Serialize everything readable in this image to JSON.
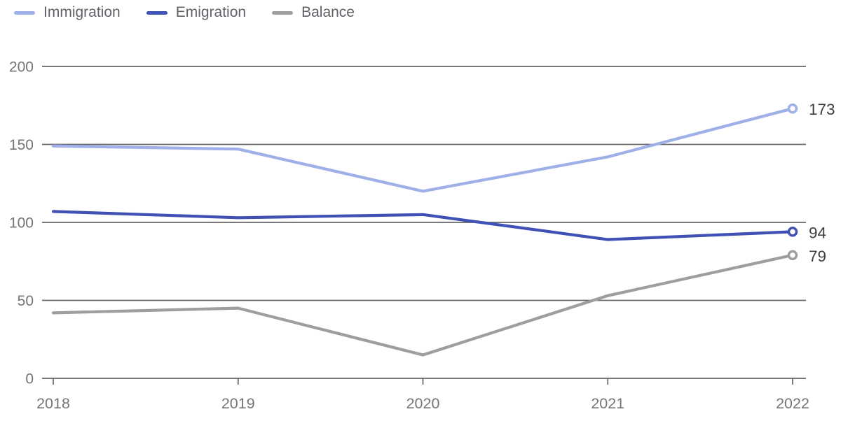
{
  "colors": {
    "background": "#FFFFFF",
    "gridline": "#666666",
    "axis_text": "#757575",
    "legend_text": "#5F6368",
    "value_text": "#3C4043",
    "immigration": "#9FAFE8",
    "emigration": "#3F51B5",
    "balance": "#9E9E9E"
  },
  "chart_data": {
    "type": "line",
    "title": "",
    "xlabel": "",
    "ylabel": "",
    "x": [
      "2018",
      "2019",
      "2020",
      "2021",
      "2022"
    ],
    "series": [
      {
        "name": "Immigration",
        "color": "#9FAFE8",
        "values": [
          149,
          147,
          120,
          142,
          173
        ],
        "end_label": "173"
      },
      {
        "name": "Emigration",
        "color": "#3F51B5",
        "values": [
          107,
          103,
          105,
          89,
          94
        ],
        "end_label": "94"
      },
      {
        "name": "Balance",
        "color": "#9E9E9E",
        "values": [
          42,
          45,
          15,
          53,
          79
        ],
        "end_label": "79"
      }
    ],
    "yticks": [
      0,
      50,
      100,
      150,
      200
    ],
    "ylim": [
      0,
      200
    ],
    "grid": "horizontal",
    "legend_position": "top-left",
    "end_markers": "open-circle"
  }
}
